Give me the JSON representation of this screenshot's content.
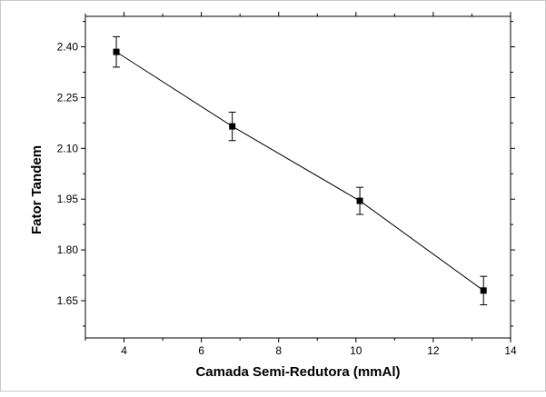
{
  "chart_data": {
    "type": "line",
    "title": "",
    "xlabel": "Camada Semi-Redutora (mmAl)",
    "ylabel": "Fator Tandem",
    "xlim": [
      3,
      14
    ],
    "ylim": [
      1.54,
      2.49
    ],
    "x_ticks": [
      4,
      6,
      8,
      10,
      12,
      14
    ],
    "x_tick_labels": [
      "4",
      "6",
      "8",
      "10",
      "12",
      "14"
    ],
    "y_ticks": [
      1.65,
      1.8,
      1.95,
      2.1,
      2.25,
      2.4
    ],
    "y_tick_labels": [
      "1.65",
      "1.80",
      "1.95",
      "2.10",
      "2.25",
      "2.40"
    ],
    "grid": false,
    "legend": "none",
    "marker": "square",
    "series": [
      {
        "x": [
          3.8,
          6.8,
          10.1,
          13.3
        ],
        "y": [
          2.385,
          2.165,
          1.945,
          1.68
        ],
        "error": [
          0.045,
          0.042,
          0.04,
          0.042
        ]
      }
    ],
    "colors": {
      "series": "#000000",
      "axis": "#000000",
      "background": "#ffffff"
    }
  }
}
